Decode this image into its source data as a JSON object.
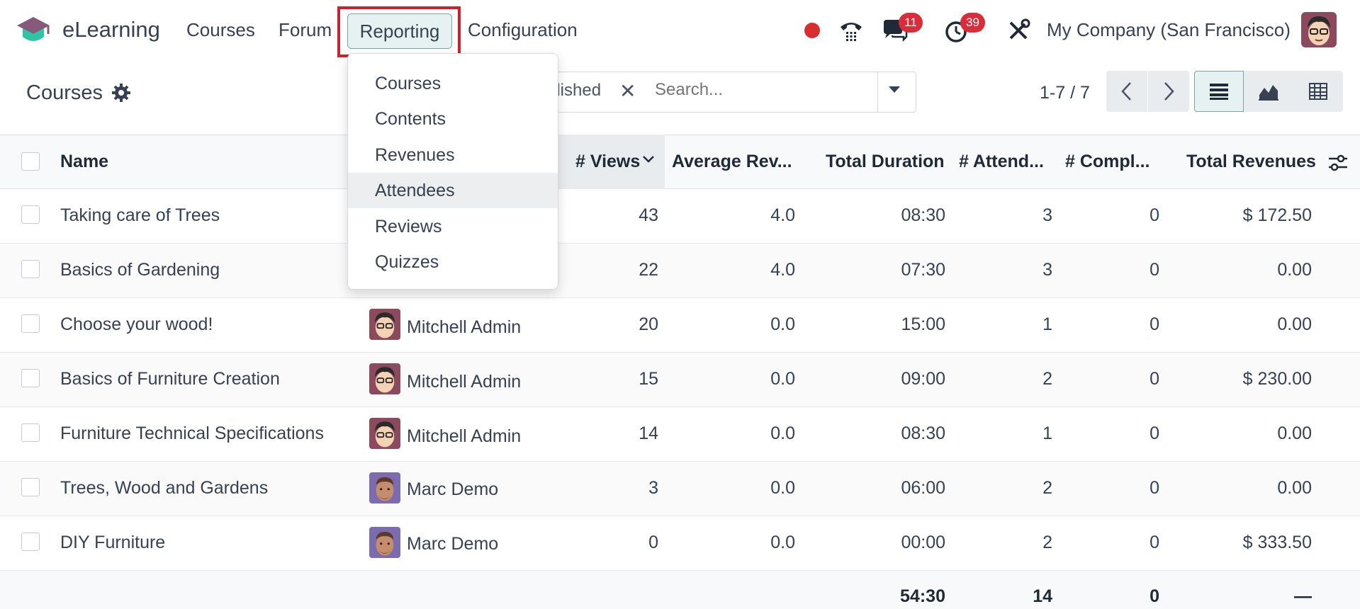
{
  "app": {
    "name": "eLearning"
  },
  "navbar": {
    "menus": [
      "Courses",
      "Forum",
      "Reporting",
      "Configuration"
    ],
    "messages_count": "11",
    "activities_count": "39",
    "company": "My Company (San Francisco)"
  },
  "reporting_menu": {
    "items": [
      "Courses",
      "Contents",
      "Revenues",
      "Attendees",
      "Reviews",
      "Quizzes"
    ],
    "highlighted": "Attendees"
  },
  "control_panel": {
    "title": "Courses",
    "facet": "Published",
    "facet_visible": "plished",
    "search_placeholder": "Search...",
    "pager": "1-7 / 7"
  },
  "table": {
    "columns": [
      "Name",
      "# Views",
      "Average Rev...",
      "Total Duration",
      "# Attend...",
      "# Compl...",
      "Total Revenues"
    ],
    "rows": [
      {
        "name": "Taking care of Trees",
        "responsible": "",
        "views": "43",
        "avg_rev": "4.0",
        "duration": "08:30",
        "attendees": "3",
        "completed": "0",
        "revenue": "$ 172.50"
      },
      {
        "name": "Basics of Gardening",
        "responsible": "",
        "views": "22",
        "avg_rev": "4.0",
        "duration": "07:30",
        "attendees": "3",
        "completed": "0",
        "revenue": "0.00"
      },
      {
        "name": "Choose your wood!",
        "responsible": "Mitchell Admin",
        "views": "20",
        "avg_rev": "0.0",
        "duration": "15:00",
        "attendees": "1",
        "completed": "0",
        "revenue": "0.00"
      },
      {
        "name": "Basics of Furniture Creation",
        "responsible": "Mitchell Admin",
        "views": "15",
        "avg_rev": "0.0",
        "duration": "09:00",
        "attendees": "2",
        "completed": "0",
        "revenue": "$ 230.00"
      },
      {
        "name": "Furniture Technical Specifications",
        "responsible": "Mitchell Admin",
        "views": "14",
        "avg_rev": "0.0",
        "duration": "08:30",
        "attendees": "1",
        "completed": "0",
        "revenue": "0.00"
      },
      {
        "name": "Trees, Wood and Gardens",
        "responsible": "Marc Demo",
        "views": "3",
        "avg_rev": "0.0",
        "duration": "06:00",
        "attendees": "2",
        "completed": "0",
        "revenue": "0.00"
      },
      {
        "name": "DIY Furniture",
        "responsible": "Marc Demo",
        "views": "0",
        "avg_rev": "0.0",
        "duration": "00:00",
        "attendees": "2",
        "completed": "0",
        "revenue": "$ 333.50"
      }
    ],
    "totals": {
      "duration": "54:30",
      "attendees": "14",
      "completed": "0",
      "revenue": "—"
    }
  },
  "colors": {
    "brand": "#714B67",
    "primary_teal": "#017e84",
    "badge_red": "#d92e3a",
    "highlight_box": "#d0202e"
  },
  "icons": [
    "logo-icon",
    "record-dot-icon",
    "phone-icon",
    "chat-icon",
    "clock-icon",
    "tools-icon",
    "gear-icon",
    "close-icon",
    "caret-down-icon",
    "chevron-left-icon",
    "chevron-right-icon",
    "list-view-icon",
    "graph-view-icon",
    "pivot-view-icon",
    "sort-desc-icon",
    "column-settings-icon"
  ]
}
